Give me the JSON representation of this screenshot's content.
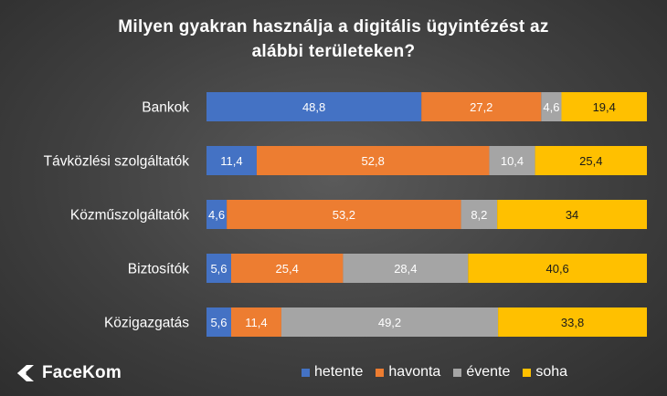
{
  "title_lines": [
    "Milyen gyakran használja a digitális ügyintézést az",
    "alábbi területeken?"
  ],
  "logo": {
    "text": "FaceKom",
    "icon": "facekom-logo-icon"
  },
  "chart_data": {
    "type": "bar",
    "orientation": "horizontal",
    "stacked": true,
    "title": "Milyen gyakran használja a digitális ügyintézést az alábbi területeken?",
    "categories": [
      "Bankok",
      "Távközlési szolgáltatók",
      "Közműszolgáltatók",
      "Biztosítók",
      "Közigazgatás"
    ],
    "series": [
      {
        "name": "hetente",
        "color": "#4472c4",
        "label_color": "#ffffff",
        "values": [
          48.8,
          11.4,
          4.6,
          5.6,
          5.6
        ]
      },
      {
        "name": "havonta",
        "color": "#ed7d31",
        "label_color": "#ffffff",
        "values": [
          27.2,
          52.8,
          53.2,
          25.4,
          11.4
        ]
      },
      {
        "name": "évente",
        "color": "#a5a5a5",
        "label_color": "#ffffff",
        "values": [
          4.6,
          10.4,
          8.2,
          28.4,
          49.2
        ]
      },
      {
        "name": "soha",
        "color": "#ffc000",
        "label_color": "#1a1a1a",
        "values": [
          19.4,
          25.4,
          34,
          40.6,
          33.8
        ]
      }
    ],
    "xlim": [
      0,
      100
    ],
    "grid": false,
    "legend_position": "bottom"
  }
}
